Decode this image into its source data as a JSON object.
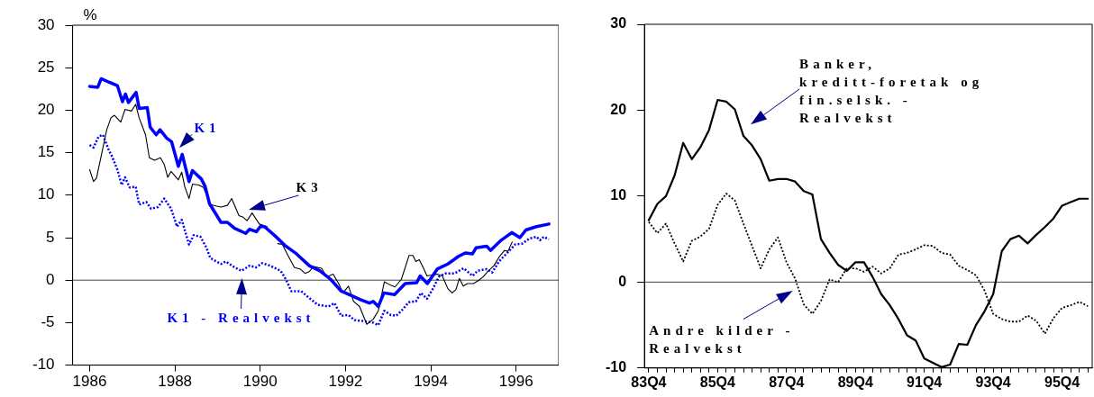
{
  "chart_data": [
    {
      "type": "line",
      "ylabel": "%",
      "xlim": [
        1985.6,
        1997.0
      ],
      "ylim": [
        -10,
        30
      ],
      "xticks": [
        1986,
        1988,
        1990,
        1992,
        1994,
        1996
      ],
      "yticks": [
        -10,
        -5,
        0,
        5,
        10,
        15,
        20,
        25,
        30
      ],
      "grid": false,
      "legend": false,
      "marker": "none",
      "ref_lines": [
        {
          "axis": "y",
          "value": 0,
          "color": "#444444"
        }
      ],
      "series": [
        {
          "name": "K1",
          "color": "#0000ff",
          "line_style": "solid",
          "x": [
            1986.0,
            1986.19,
            1986.27,
            1986.45,
            1986.65,
            1986.77,
            1986.84,
            1986.91,
            1987.09,
            1987.16,
            1987.35,
            1987.42,
            1987.56,
            1987.65,
            1987.81,
            1987.92,
            1988.08,
            1988.17,
            1988.33,
            1988.41,
            1988.62,
            1988.71,
            1988.81,
            1989.08,
            1989.23,
            1989.4,
            1989.66,
            1989.75,
            1989.91,
            1990.0,
            1990.1,
            1990.35,
            1990.6,
            1990.85,
            1991.15,
            1991.4,
            1991.65,
            1991.9,
            1992.13,
            1992.35,
            1992.56,
            1992.65,
            1992.77,
            1992.9,
            1993.15,
            1993.4,
            1993.67,
            1993.75,
            1993.92,
            1994.15,
            1994.4,
            1994.65,
            1994.81,
            1994.98,
            1995.06,
            1995.31,
            1995.4,
            1995.65,
            1995.9,
            1996.09,
            1996.23,
            1996.48,
            1996.77
          ],
          "values": [
            22.8,
            22.7,
            23.7,
            23.3,
            22.9,
            21.0,
            21.9,
            20.9,
            22.1,
            20.2,
            20.3,
            18.0,
            17.1,
            17.7,
            16.7,
            16.3,
            13.4,
            14.8,
            11.6,
            12.9,
            11.9,
            11.0,
            9.0,
            6.8,
            6.8,
            6.1,
            5.5,
            6.0,
            5.7,
            6.3,
            6.3,
            5.2,
            4.0,
            3.1,
            1.7,
            1.1,
            0.1,
            -1.3,
            -1.8,
            -2.3,
            -2.7,
            -2.5,
            -3.1,
            -1.5,
            -1.7,
            -0.4,
            -0.3,
            0.5,
            -0.4,
            1.3,
            1.9,
            2.8,
            3.2,
            3.1,
            3.8,
            4.0,
            3.5,
            4.7,
            5.6,
            5.0,
            5.9,
            6.3,
            6.6
          ]
        },
        {
          "name": "K3",
          "color": "#000000",
          "line_style": "solid",
          "x": [
            1986.0,
            1986.09,
            1986.16,
            1986.27,
            1986.4,
            1986.5,
            1986.58,
            1986.73,
            1986.83,
            1986.98,
            1987.08,
            1987.16,
            1987.31,
            1987.4,
            1987.52,
            1987.66,
            1987.75,
            1987.83,
            1987.91,
            1988.08,
            1988.16,
            1988.23,
            1988.33,
            1988.41,
            1988.56,
            1988.67,
            1988.84,
            1988.98,
            1989.08,
            1989.23,
            1989.33,
            1989.5,
            1989.6,
            1989.69,
            1989.81,
            1989.98,
            1990.16,
            1990.27,
            1990.41,
            1990.52,
            1990.65,
            1990.8,
            1990.94,
            1991.05,
            1991.15,
            1991.25,
            1991.44,
            1991.56,
            1991.71,
            1991.85,
            1991.94,
            1992.07,
            1992.19,
            1992.33,
            1992.5,
            1992.65,
            1992.77,
            1992.91,
            1993.06,
            1993.16,
            1993.31,
            1993.49,
            1993.58,
            1993.65,
            1993.73,
            1993.83,
            1993.91,
            1994.02,
            1994.15,
            1994.27,
            1994.4,
            1994.5,
            1994.59,
            1994.67,
            1994.76,
            1994.86,
            1995.0,
            1995.13,
            1995.23,
            1995.35,
            1995.48,
            1995.6,
            1995.73,
            1995.81,
            1995.91
          ],
          "values": [
            13.0,
            11.6,
            12.0,
            14.6,
            17.7,
            19.1,
            19.4,
            18.6,
            20.1,
            19.9,
            20.7,
            19.1,
            17.1,
            14.4,
            14.1,
            14.4,
            13.6,
            12.1,
            12.8,
            11.8,
            12.7,
            11.0,
            9.6,
            11.3,
            11.2,
            10.9,
            8.9,
            8.7,
            8.6,
            8.8,
            9.6,
            7.6,
            7.4,
            7.0,
            7.9,
            6.6,
            6.3,
            null,
            4.3,
            4.2,
            2.9,
            1.5,
            1.3,
            0.8,
            1.0,
            1.6,
            1.4,
            0.4,
            0.7,
            -0.5,
            -1.5,
            -0.7,
            -2.5,
            -3.1,
            -5.2,
            -4.6,
            -3.6,
            -0.2,
            -0.6,
            -0.8,
            0.1,
            2.9,
            2.9,
            2.2,
            2.4,
            1.4,
            0.5,
            0.6,
            0.7,
            0.5,
            -1.0,
            -1.5,
            -1.1,
            0.2,
            -0.7,
            -0.4,
            -0.4,
            0.0,
            0.4,
            1.1,
            1.7,
            2.7,
            3.5,
            3.4,
            4.5
          ]
        },
        {
          "name": "K1 - Realvekst",
          "color": "#0000ff",
          "line_style": "dotted",
          "x": [
            1986.0,
            1986.09,
            1986.21,
            1986.31,
            1986.44,
            1986.52,
            1986.65,
            1986.75,
            1986.83,
            1986.94,
            1987.08,
            1987.16,
            1987.33,
            1987.44,
            1987.6,
            1987.75,
            1987.91,
            1988.05,
            1988.16,
            1988.33,
            1988.44,
            1988.6,
            1988.73,
            1988.83,
            1989.08,
            1989.19,
            1989.4,
            1989.56,
            1989.75,
            1989.9,
            1990.05,
            1990.23,
            1990.48,
            1990.6,
            1990.73,
            1990.96,
            1991.15,
            1991.35,
            1991.6,
            1991.74,
            1991.9,
            1992.07,
            1992.21,
            1992.4,
            1992.65,
            1992.77,
            1992.91,
            1993.06,
            1993.19,
            1993.35,
            1993.48,
            1993.65,
            1993.77,
            1993.91,
            1994.05,
            1994.19,
            1994.35,
            1994.56,
            1994.77,
            1994.98,
            1995.1,
            1995.31,
            1995.44,
            1995.6,
            1995.81,
            1995.98,
            1996.15,
            1996.31,
            1996.48,
            1996.56,
            1996.65,
            1996.77
          ],
          "values": [
            15.9,
            15.6,
            16.9,
            17.1,
            15.4,
            14.6,
            13.0,
            11.2,
            12.1,
            10.9,
            11.0,
            8.9,
            9.2,
            8.4,
            8.6,
            9.6,
            8.4,
            6.3,
            7.1,
            4.2,
            5.3,
            5.1,
            3.9,
            2.6,
            1.9,
            2.2,
            1.5,
            1.1,
            1.7,
            1.5,
            2.0,
            1.7,
            1.1,
            0.1,
            -1.3,
            -1.3,
            -2.1,
            -2.9,
            -3.1,
            -2.7,
            -4.2,
            -4.1,
            -4.7,
            -4.8,
            -5.0,
            -5.3,
            -3.6,
            -4.1,
            -4.2,
            -3.4,
            -2.6,
            -2.5,
            -1.5,
            -2.2,
            -1.0,
            0.4,
            0.8,
            0.8,
            1.4,
            0.5,
            1.1,
            1.3,
            0.9,
            2.2,
            3.3,
            4.2,
            4.3,
            4.9,
            5.1,
            4.7,
            5.1,
            4.8
          ]
        }
      ]
    },
    {
      "type": "line",
      "ylim": [
        -10,
        30
      ],
      "categories": [
        "83Q4",
        null,
        null,
        null,
        null,
        null,
        null,
        null,
        "85Q4",
        null,
        null,
        null,
        null,
        null,
        null,
        null,
        "87Q4",
        null,
        null,
        null,
        null,
        null,
        null,
        null,
        "89Q4",
        null,
        null,
        null,
        null,
        null,
        null,
        null,
        "91Q4",
        null,
        null,
        null,
        null,
        null,
        null,
        null,
        "93Q4",
        null,
        null,
        null,
        null,
        null,
        null,
        null,
        "95Q4",
        null,
        null,
        null
      ],
      "yticks": [
        -10,
        0,
        10,
        20,
        30
      ],
      "grid": false,
      "legend": false,
      "marker": "none",
      "ref_lines": [
        {
          "axis": "y",
          "value": 0,
          "color": "#444444"
        }
      ],
      "series": [
        {
          "name": "Banker, kreditt-foretak og fin.selsk. - Realvekst",
          "color": "#000000",
          "line_style": "solid",
          "values": [
            7.2,
            9.1,
            10.0,
            12.4,
            16.2,
            14.3,
            15.7,
            17.7,
            21.2,
            21.0,
            20.1,
            17.0,
            15.9,
            14.3,
            11.8,
            12.0,
            12.0,
            11.7,
            10.6,
            10.2,
            5.0,
            3.4,
            2.0,
            1.3,
            2.3,
            2.3,
            0.6,
            -1.4,
            -2.7,
            -4.3,
            -6.2,
            -6.8,
            -8.9,
            -9.4,
            -9.9,
            -9.6,
            -7.2,
            -7.3,
            -5.0,
            -3.4,
            -1.4,
            3.6,
            5.0,
            5.4,
            4.5,
            5.5,
            6.4,
            7.4,
            8.9,
            9.3,
            9.7,
            9.7
          ]
        },
        {
          "name": "Andre kilder - Realvekst",
          "color": "#000000",
          "line_style": "dotted",
          "values": [
            7.0,
            5.7,
            6.8,
            4.5,
            2.4,
            4.8,
            5.3,
            6.2,
            9.0,
            10.3,
            9.5,
            6.8,
            4.2,
            1.6,
            3.8,
            5.2,
            2.3,
            0.4,
            -2.6,
            -3.7,
            -2.2,
            0.3,
            0.0,
            1.6,
            1.6,
            1.2,
            1.8,
            1.0,
            1.6,
            3.2,
            3.4,
            3.8,
            4.3,
            4.2,
            3.4,
            3.2,
            1.9,
            1.4,
            0.8,
            -1.0,
            -3.7,
            -4.3,
            -4.6,
            -4.6,
            -3.9,
            -4.5,
            -6.0,
            -4.2,
            -3.0,
            -2.7,
            -2.3,
            -2.8
          ]
        }
      ]
    }
  ]
}
